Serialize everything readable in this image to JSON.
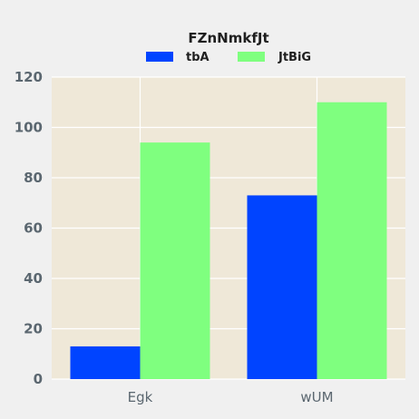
{
  "chart_data": {
    "type": "bar",
    "title": "FZnNmkfJt",
    "categories": [
      "Egk",
      "wUM"
    ],
    "series": [
      {
        "name": "tbA",
        "values": [
          13,
          73
        ],
        "color": "#0044ff"
      },
      {
        "name": "JtBiG",
        "values": [
          94,
          110
        ],
        "color": "#7fff7f"
      }
    ],
    "ylim": [
      0,
      120
    ],
    "yticks": [
      0,
      20,
      40,
      60,
      80,
      100,
      120
    ],
    "grid": true,
    "legend": "top-center",
    "plot_background": "#efe8d8",
    "page_background": "#f0f0f0"
  }
}
